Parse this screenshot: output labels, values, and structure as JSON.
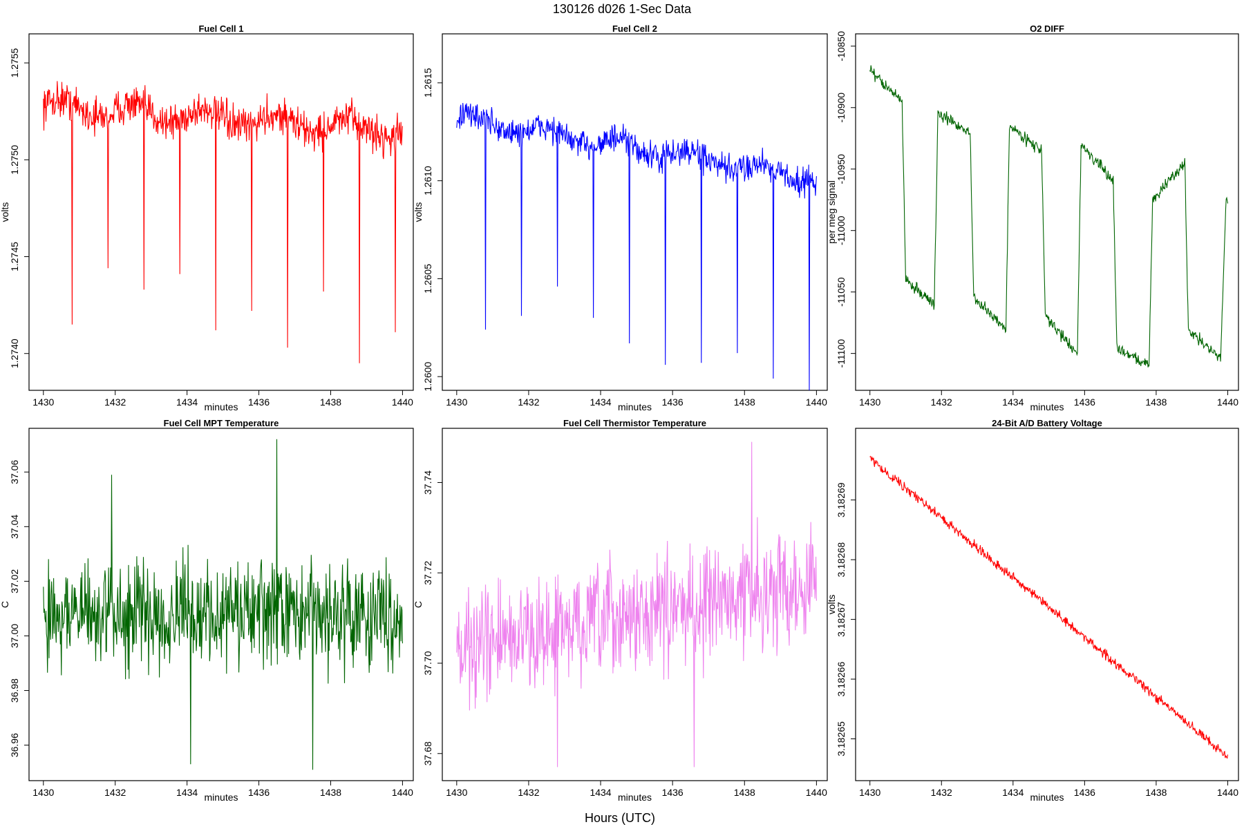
{
  "figure": {
    "title": "130126   d026   1-Sec Data",
    "xlabel": "Hours (UTC)"
  },
  "chart_data": [
    {
      "id": "fc1",
      "type": "line",
      "title": "Fuel Cell 1",
      "xlabel": "minutes",
      "ylabel": "volts",
      "color": "#ff0000",
      "xlim": [
        1429.6,
        1440.3
      ],
      "ylim": [
        1.27381,
        1.27565
      ],
      "xticks": [
        1430,
        1432,
        1434,
        1436,
        1438,
        1440
      ],
      "xtick_labels": [
        "1430",
        "1432",
        "1434",
        "1436",
        "1438",
        "1440"
      ],
      "yticks": [
        1.274,
        1.2745,
        1.275,
        1.2755
      ],
      "ytick_labels": [
        "1.2740",
        "1.2745",
        "1.2750",
        "1.2755"
      ],
      "pattern": {
        "x_start": 1430,
        "x_end": 1440,
        "base_start": 1.27528,
        "base_end": 1.27515,
        "wave_amp": 4e-05,
        "wave_period": 2.0,
        "noise": 0.00014,
        "spikes": [
          [
            1430.8,
            1.27415
          ],
          [
            1431.8,
            1.27444
          ],
          [
            1432.8,
            1.27433
          ],
          [
            1433.8,
            1.27441
          ],
          [
            1434.8,
            1.27412
          ],
          [
            1435.8,
            1.27422
          ],
          [
            1436.8,
            1.27403
          ],
          [
            1437.8,
            1.27432
          ],
          [
            1438.8,
            1.27395
          ],
          [
            1439.8,
            1.27411
          ]
        ]
      }
    },
    {
      "id": "fc2",
      "type": "line",
      "title": "Fuel Cell 2",
      "xlabel": "minutes",
      "ylabel": "volts",
      "color": "#0000ff",
      "xlim": [
        1429.6,
        1440.3
      ],
      "ylim": [
        1.25993,
        1.26175
      ],
      "xticks": [
        1430,
        1432,
        1434,
        1436,
        1438,
        1440
      ],
      "xtick_labels": [
        "1430",
        "1432",
        "1434",
        "1436",
        "1438",
        "1440"
      ],
      "yticks": [
        1.26,
        1.2605,
        1.261,
        1.2615
      ],
      "ytick_labels": [
        "1.2600",
        "1.2605",
        "1.2610",
        "1.2615"
      ],
      "pattern": {
        "x_start": 1430,
        "x_end": 1440,
        "base_start": 1.26132,
        "base_end": 1.26101,
        "wave_amp": 3e-05,
        "wave_period": 2.0,
        "noise": 0.00011,
        "spikes": [
          [
            1430.8,
            1.26024
          ],
          [
            1431.8,
            1.26031
          ],
          [
            1432.8,
            1.26046
          ],
          [
            1433.8,
            1.2603
          ],
          [
            1434.8,
            1.26017
          ],
          [
            1435.8,
            1.26006
          ],
          [
            1436.8,
            1.26007
          ],
          [
            1437.8,
            1.26012
          ],
          [
            1438.8,
            1.25999
          ],
          [
            1439.8,
            1.25993
          ]
        ]
      }
    },
    {
      "id": "o2",
      "type": "line",
      "title": "O2 DIFF",
      "xlabel": "minutes",
      "ylabel": "per meg signal",
      "color": "#006400",
      "xlim": [
        1429.6,
        1440.3
      ],
      "ylim": [
        -11130,
        -10840
      ],
      "xticks": [
        1430,
        1432,
        1434,
        1436,
        1438,
        1440
      ],
      "xtick_labels": [
        "1430",
        "1432",
        "1434",
        "1436",
        "1438",
        "1440"
      ],
      "yticks": [
        -11100,
        -11050,
        -11000,
        -10950,
        -10900,
        -10850
      ],
      "ytick_labels": [
        "-11100",
        "-11050",
        "-11000",
        "-10950",
        "-10900",
        "-10850"
      ],
      "levels": [
        [
          1430.0,
          1430.9,
          -10870,
          -10895
        ],
        [
          1431.0,
          1431.8,
          -11040,
          -11060
        ],
        [
          1431.9,
          1432.8,
          -10905,
          -10920
        ],
        [
          1432.9,
          1433.8,
          -11055,
          -11080
        ],
        [
          1433.9,
          1434.8,
          -10915,
          -10935
        ],
        [
          1434.9,
          1435.8,
          -11070,
          -11100
        ],
        [
          1435.9,
          1436.8,
          -10930,
          -10960
        ],
        [
          1436.9,
          1437.8,
          -11095,
          -11110
        ],
        [
          1437.9,
          1438.8,
          -10975,
          -10945
        ],
        [
          1438.9,
          1439.8,
          -11080,
          -11105
        ]
      ],
      "end": [
        1439.95,
        -10975
      ]
    },
    {
      "id": "mpt",
      "type": "line",
      "title": "Fuel Cell MPT Temperature",
      "xlabel": "minutes",
      "ylabel": "C",
      "color": "#006400",
      "xlim": [
        1429.6,
        1440.3
      ],
      "ylim": [
        36.947,
        37.076
      ],
      "xticks": [
        1430,
        1432,
        1434,
        1436,
        1438,
        1440
      ],
      "xtick_labels": [
        "1430",
        "1432",
        "1434",
        "1436",
        "1438",
        "1440"
      ],
      "yticks": [
        36.96,
        36.98,
        37.0,
        37.02,
        37.04,
        37.06
      ],
      "ytick_labels": [
        "36.96",
        "36.98",
        "37.00",
        "37.02",
        "37.04",
        "37.06"
      ],
      "pattern": {
        "x_start": 1430,
        "x_end": 1440,
        "base_start": 37.008,
        "base_end": 37.008,
        "noise": 0.028,
        "extremes": [
          [
            1436.5,
            37.072
          ],
          [
            1437.5,
            36.951
          ],
          [
            1434.1,
            36.953
          ],
          [
            1431.9,
            37.059
          ]
        ]
      }
    },
    {
      "id": "therm",
      "type": "line",
      "title": "Fuel Cell Thermistor Temperature",
      "xlabel": "minutes",
      "ylabel": "C",
      "color": "#ee82ee",
      "xlim": [
        1429.6,
        1440.3
      ],
      "ylim": [
        37.674,
        37.752
      ],
      "xticks": [
        1430,
        1432,
        1434,
        1436,
        1438,
        1440
      ],
      "xtick_labels": [
        "1430",
        "1432",
        "1434",
        "1436",
        "1438",
        "1440"
      ],
      "yticks": [
        37.68,
        37.7,
        37.72,
        37.74
      ],
      "ytick_labels": [
        "37.68",
        "37.70",
        "37.72",
        "37.74"
      ],
      "pattern": {
        "x_start": 1430,
        "x_end": 1440,
        "base_start": 37.703,
        "base_end": 37.718,
        "noise": 0.018,
        "extremes": [
          [
            1438.2,
            37.749
          ],
          [
            1436.6,
            37.677
          ],
          [
            1432.8,
            37.677
          ]
        ]
      }
    },
    {
      "id": "batt",
      "type": "line",
      "title": "24-Bit A/D Battery Voltage",
      "xlabel": "minutes",
      "ylabel": "volts",
      "color": "#ff0000",
      "xlim": [
        1429.6,
        1440.3
      ],
      "ylim": [
        3.182643,
        3.182702
      ],
      "xticks": [
        1430,
        1432,
        1434,
        1436,
        1438,
        1440
      ],
      "xtick_labels": [
        "1430",
        "1432",
        "1434",
        "1436",
        "1438",
        "1440"
      ],
      "yticks": [
        3.18265,
        3.18266,
        3.18267,
        3.18268,
        3.18269
      ],
      "ytick_labels": [
        "3.18265",
        "3.18266",
        "3.18267",
        "3.18268",
        "3.18269"
      ],
      "pattern": {
        "x_start": 1430,
        "x_end": 1440,
        "base_start": 3.182697,
        "base_end": 3.182647,
        "noise": 1.2e-06
      }
    }
  ]
}
